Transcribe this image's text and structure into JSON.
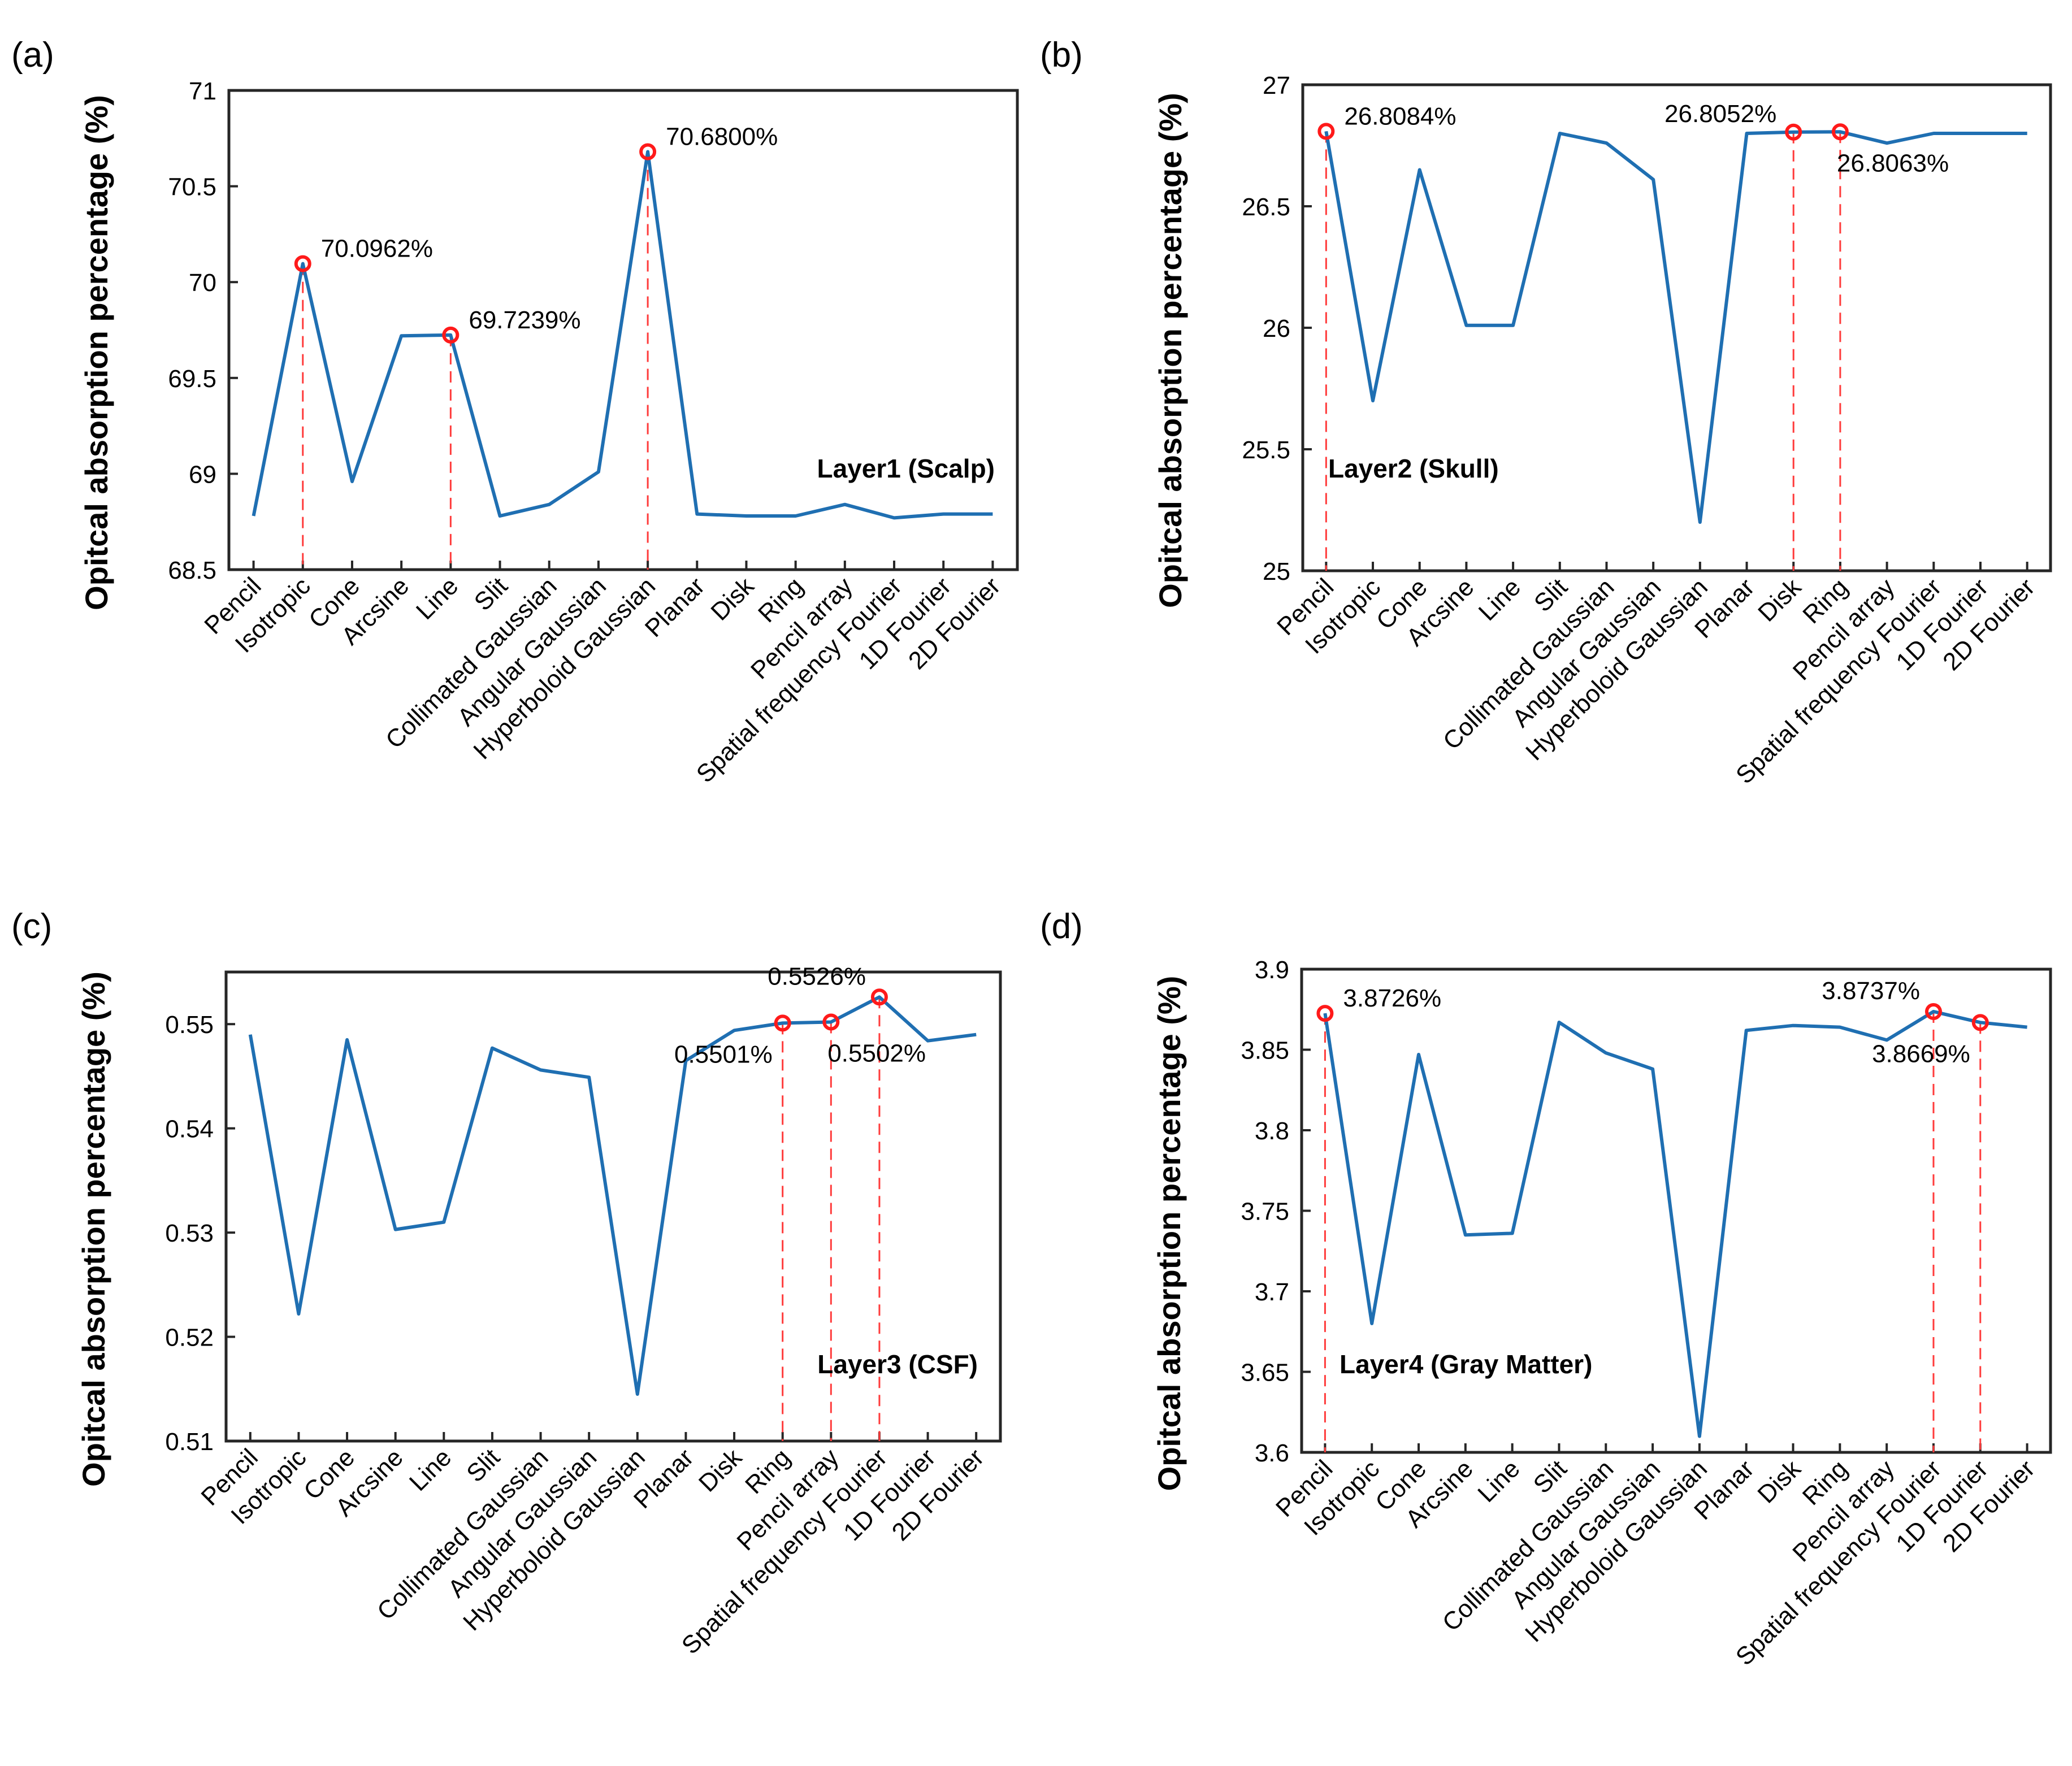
{
  "chart_data": [
    {
      "panel": "(a)",
      "type": "line",
      "annotation_title": "Layer1 (Scalp)",
      "ylabel": "Opitcal absorption percentage (%)",
      "ylim": [
        68.5,
        71
      ],
      "yticks": [
        68.5,
        69,
        69.5,
        70,
        70.5,
        71
      ],
      "ytick_labels": [
        "68.5",
        "69",
        "69.5",
        "70",
        "70.5",
        "71"
      ],
      "categories": [
        "Pencil",
        "Isotropic",
        "Cone",
        "Arcsine",
        "Line",
        "Slit",
        "Collimated Gaussian",
        "Angular Gaussian",
        "Hyperboloid Gaussian",
        "Planar",
        "Disk",
        "Ring",
        "Pencil array",
        "Spatial frequency Fourier",
        "1D Fourier",
        "2D Fourier"
      ],
      "values": [
        68.78,
        70.0962,
        68.96,
        69.72,
        69.7239,
        68.78,
        68.84,
        69.01,
        70.68,
        68.79,
        68.78,
        68.78,
        68.84,
        68.77,
        68.79,
        68.79
      ],
      "color": "#1f6fb2",
      "markers": [
        {
          "index": 1,
          "label": "70.0962%",
          "anchor": "right"
        },
        {
          "index": 4,
          "label": "69.7239%",
          "anchor": "right"
        },
        {
          "index": 8,
          "label": "70.6800%",
          "anchor": "right"
        }
      ]
    },
    {
      "panel": "(b)",
      "type": "line",
      "annotation_title": "Layer2 (Skull)",
      "ylabel": "Opitcal absorption percentage (%)",
      "ylim": [
        25,
        27
      ],
      "yticks": [
        25,
        25.5,
        26,
        26.5,
        27
      ],
      "ytick_labels": [
        "25",
        "25.5",
        "26",
        "26.5",
        "27"
      ],
      "categories": [
        "Pencil",
        "Isotropic",
        "Cone",
        "Arcsine",
        "Line",
        "Slit",
        "Collimated Gaussian",
        "Angular Gaussian",
        "Hyperboloid Gaussian",
        "Planar",
        "Disk",
        "Ring",
        "Pencil array",
        "Spatial frequency Fourier",
        "1D Fourier",
        "2D Fourier"
      ],
      "values": [
        26.8084,
        25.7,
        26.65,
        26.01,
        26.01,
        26.8,
        26.76,
        26.61,
        25.2,
        26.8,
        26.8052,
        26.8063,
        26.76,
        26.8,
        26.8,
        26.8
      ],
      "color": "#1f6fb2",
      "markers": [
        {
          "index": 0,
          "label": "26.8084%",
          "anchor": "right"
        },
        {
          "index": 10,
          "label": "26.8052%",
          "anchor": "left"
        },
        {
          "index": 11,
          "label": "26.8063%",
          "anchor": "below"
        }
      ]
    },
    {
      "panel": "(c)",
      "type": "line",
      "annotation_title": "Layer3 (CSF)",
      "ylabel": "Opitcal absorption percentage (%)",
      "ylim": [
        0.51,
        0.555
      ],
      "yticks": [
        0.51,
        0.52,
        0.53,
        0.54,
        0.55
      ],
      "ytick_labels": [
        "0.51",
        "0.52",
        "0.53",
        "0.54",
        "0.55"
      ],
      "categories": [
        "Pencil",
        "Isotropic",
        "Cone",
        "Arcsine",
        "Line",
        "Slit",
        "Collimated Gaussian",
        "Angular Gaussian",
        "Hyperboloid Gaussian",
        "Planar",
        "Disk",
        "Ring",
        "Pencil array",
        "Spatial frequency Fourier",
        "1D Fourier",
        "2D Fourier"
      ],
      "values": [
        0.549,
        0.5222,
        0.5485,
        0.5303,
        0.531,
        0.5477,
        0.5456,
        0.5449,
        0.5145,
        0.5465,
        0.5494,
        0.5501,
        0.5502,
        0.5526,
        0.5484,
        0.549
      ],
      "color": "#1f6fb2",
      "markers": [
        {
          "index": 11,
          "label": "0.5501%",
          "anchor": "below-left"
        },
        {
          "index": 12,
          "label": "0.5502%",
          "anchor": "below"
        },
        {
          "index": 13,
          "label": "0.5526%",
          "anchor": "above-left"
        }
      ]
    },
    {
      "panel": "(d)",
      "type": "line",
      "annotation_title": "Layer4 (Gray Matter)",
      "ylabel": "Opitcal absorption percentage (%)",
      "ylim": [
        3.6,
        3.9
      ],
      "yticks": [
        3.6,
        3.65,
        3.7,
        3.75,
        3.8,
        3.85,
        3.9
      ],
      "ytick_labels": [
        "3.6",
        "3.65",
        "3.7",
        "3.75",
        "3.8",
        "3.85",
        "3.9"
      ],
      "categories": [
        "Pencil",
        "Isotropic",
        "Cone",
        "Arcsine",
        "Line",
        "Slit",
        "Collimated Gaussian",
        "Angular Gaussian",
        "Hyperboloid Gaussian",
        "Planar",
        "Disk",
        "Ring",
        "Pencil array",
        "Spatial frequency Fourier",
        "1D Fourier",
        "2D Fourier"
      ],
      "values": [
        3.8726,
        3.68,
        3.847,
        3.735,
        3.736,
        3.867,
        3.848,
        3.838,
        3.61,
        3.862,
        3.865,
        3.864,
        3.856,
        3.8737,
        3.8669,
        3.864
      ],
      "color": "#1f6fb2",
      "markers": [
        {
          "index": 0,
          "label": "3.8726%",
          "anchor": "right"
        },
        {
          "index": 13,
          "label": "3.8737%",
          "anchor": "above-left"
        },
        {
          "index": 14,
          "label": "3.8669%",
          "anchor": "below-left"
        }
      ]
    }
  ]
}
